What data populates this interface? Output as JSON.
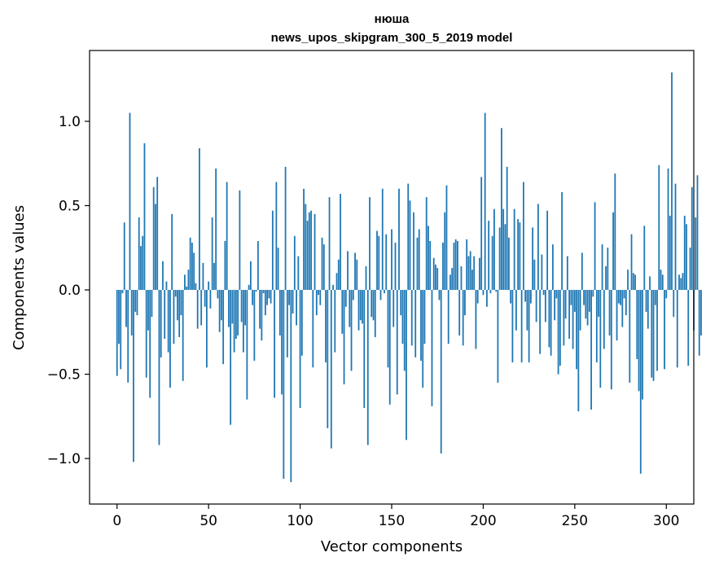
{
  "chart_data": {
    "type": "bar",
    "title": "нюша",
    "subtitle": "news_upos_skipgram_300_5_2019 model",
    "xlabel": "Vector components",
    "ylabel": "Components values",
    "xlim": [
      -15,
      315
    ],
    "ylim": [
      -1.27,
      1.42
    ],
    "xticks": [
      0,
      50,
      100,
      150,
      200,
      250,
      300
    ],
    "yticks": [
      -1.0,
      -0.5,
      0.0,
      0.5,
      1.0
    ],
    "xtick_labels": [
      "0",
      "50",
      "100",
      "150",
      "200",
      "250",
      "300"
    ],
    "ytick_labels": [
      "−1.0",
      "−0.5",
      "0.0",
      "0.5",
      "1.0"
    ],
    "bar_color": "#1f77b4",
    "grid": false,
    "values": [
      -0.51,
      -0.32,
      -0.47,
      -0.02,
      0.4,
      -0.22,
      -0.55,
      1.05,
      -0.27,
      -1.02,
      -0.13,
      -0.15,
      0.43,
      0.26,
      0.32,
      0.87,
      -0.52,
      -0.24,
      -0.64,
      -0.16,
      0.61,
      0.51,
      0.67,
      -0.92,
      -0.4,
      0.17,
      -0.29,
      0.05,
      -0.37,
      -0.58,
      0.45,
      -0.32,
      -0.04,
      -0.18,
      -0.28,
      -0.15,
      -0.54,
      0.09,
      0.02,
      0.12,
      0.31,
      0.28,
      0.22,
      0.04,
      -0.23,
      0.84,
      -0.21,
      0.16,
      -0.1,
      -0.46,
      0.05,
      -0.11,
      0.43,
      0.16,
      0.72,
      -0.05,
      -0.25,
      -0.18,
      -0.44,
      0.29,
      0.64,
      -0.22,
      -0.8,
      -0.2,
      -0.37,
      -0.29,
      -0.27,
      0.59,
      -0.19,
      -0.37,
      -0.21,
      -0.65,
      0.03,
      0.17,
      -0.09,
      -0.42,
      -0.01,
      0.29,
      -0.23,
      -0.3,
      -0.02,
      -0.15,
      -0.09,
      -0.05,
      -0.08,
      0.47,
      -0.64,
      0.64,
      0.25,
      -0.27,
      -0.62,
      -1.12,
      0.73,
      -0.4,
      -0.09,
      -1.14,
      -0.14,
      0.32,
      -0.21,
      0.2,
      -0.7,
      -0.39,
      0.6,
      0.51,
      0.41,
      0.46,
      0.47,
      -0.46,
      0.45,
      -0.15,
      -0.03,
      -0.09,
      0.31,
      0.27,
      -0.43,
      -0.82,
      0.55,
      -0.94,
      0.03,
      -0.37,
      0.1,
      0.18,
      0.57,
      -0.26,
      -0.56,
      -0.1,
      0.23,
      -0.22,
      -0.48,
      -0.06,
      0.22,
      0.18,
      -0.24,
      -0.18,
      -0.2,
      -0.7,
      0.14,
      -0.92,
      0.55,
      -0.16,
      -0.18,
      -0.28,
      0.35,
      0.32,
      -0.06,
      0.6,
      -0.02,
      0.33,
      -0.46,
      -0.68,
      0.36,
      -0.22,
      0.28,
      -0.62,
      0.6,
      -0.15,
      -0.32,
      -0.48,
      -0.89,
      0.63,
      0.53,
      -0.33,
      0.46,
      -0.4,
      0.31,
      0.36,
      -0.42,
      -0.58,
      -0.32,
      0.55,
      0.38,
      0.29,
      -0.69,
      0.19,
      0.15,
      0.13,
      -0.06,
      -0.97,
      0.28,
      0.46,
      0.62,
      -0.32,
      0.09,
      0.13,
      0.28,
      0.3,
      0.29,
      -0.27,
      0.14,
      -0.33,
      -0.15,
      0.3,
      0.2,
      0.23,
      0.12,
      0.2,
      -0.35,
      -0.08,
      0.19,
      0.67,
      -0.03,
      1.05,
      -0.1,
      0.41,
      -0.02,
      0.32,
      0.48,
      -0.01,
      -0.55,
      0.37,
      0.96,
      0.48,
      0.39,
      0.73,
      0.31,
      -0.08,
      -0.43,
      0.48,
      -0.24,
      0.42,
      0.4,
      -0.43,
      0.64,
      -0.07,
      -0.24,
      -0.43,
      -0.08,
      0.37,
      0.18,
      -0.19,
      0.51,
      -0.38,
      0.21,
      -0.03,
      -0.19,
      0.47,
      -0.34,
      -0.39,
      0.27,
      -0.18,
      -0.05,
      -0.5,
      -0.45,
      0.58,
      -0.33,
      -0.17,
      0.2,
      -0.29,
      -0.09,
      -0.35,
      -0.13,
      -0.47,
      -0.72,
      -0.24,
      0.22,
      -0.09,
      -0.17,
      -0.21,
      -0.13,
      -0.71,
      -0.04,
      0.52,
      -0.43,
      -0.16,
      -0.58,
      0.27,
      -0.35,
      0.14,
      0.25,
      -0.27,
      -0.59,
      0.46,
      0.69,
      -0.3,
      -0.08,
      -0.09,
      -0.22,
      -0.05,
      -0.15,
      0.12,
      -0.55,
      0.33,
      0.1,
      0.09,
      -0.41,
      -0.6,
      -1.09,
      -0.65,
      0.38,
      -0.13,
      -0.23,
      0.08,
      -0.52,
      -0.54,
      -0.09,
      -0.48,
      0.74,
      0.12,
      0.09,
      -0.47,
      -0.05,
      0.72,
      0.44,
      1.29,
      -0.16,
      0.63,
      -0.46,
      0.09,
      0.07,
      0.1,
      0.44,
      0.39,
      -0.45,
      0.25,
      0.61,
      -0.24,
      0.43,
      0.68,
      -0.39,
      -0.27
    ]
  }
}
